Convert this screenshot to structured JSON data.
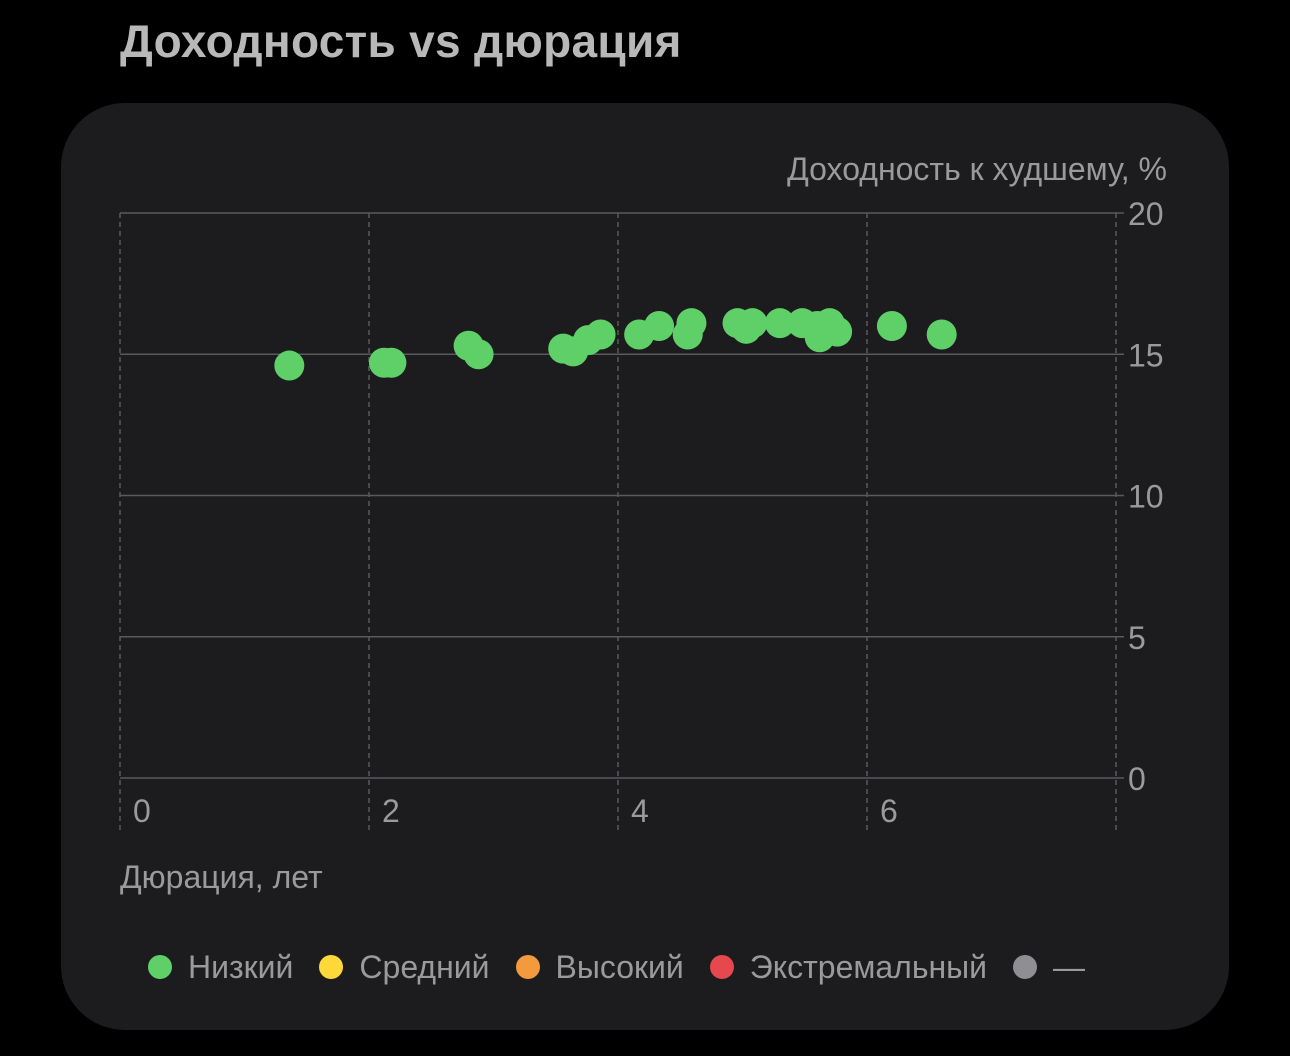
{
  "page": {
    "title": "Доходность vs дюрация"
  },
  "chart_data": {
    "type": "scatter",
    "title": "Доходность vs дюрация",
    "xlabel": "Дюрация, лет",
    "ylabel": "Доходность к худшему, %",
    "xlim": [
      0,
      8
    ],
    "ylim": [
      0,
      20
    ],
    "x_ticks": [
      0,
      2,
      4,
      6
    ],
    "y_ticks": [
      0,
      5,
      10,
      15,
      20
    ],
    "grid": true,
    "legend_position": "bottom",
    "series": [
      {
        "name": "Низкий",
        "color": "#5fd068",
        "points": [
          {
            "x": 1.36,
            "y": 14.6
          },
          {
            "x": 2.12,
            "y": 14.7
          },
          {
            "x": 2.18,
            "y": 14.7
          },
          {
            "x": 2.8,
            "y": 15.3
          },
          {
            "x": 2.88,
            "y": 15.0
          },
          {
            "x": 3.56,
            "y": 15.2
          },
          {
            "x": 3.64,
            "y": 15.1
          },
          {
            "x": 3.76,
            "y": 15.5
          },
          {
            "x": 3.86,
            "y": 15.7
          },
          {
            "x": 4.17,
            "y": 15.7
          },
          {
            "x": 4.33,
            "y": 16.0
          },
          {
            "x": 4.56,
            "y": 15.7
          },
          {
            "x": 4.59,
            "y": 16.1
          },
          {
            "x": 4.96,
            "y": 16.1
          },
          {
            "x": 5.03,
            "y": 15.9
          },
          {
            "x": 5.08,
            "y": 16.1
          },
          {
            "x": 5.3,
            "y": 16.1
          },
          {
            "x": 5.48,
            "y": 16.1
          },
          {
            "x": 5.6,
            "y": 16.0
          },
          {
            "x": 5.62,
            "y": 15.6
          },
          {
            "x": 5.7,
            "y": 16.1
          },
          {
            "x": 5.76,
            "y": 15.8
          },
          {
            "x": 6.2,
            "y": 16.0
          },
          {
            "x": 6.6,
            "y": 15.7
          }
        ]
      },
      {
        "name": "Средний",
        "color": "#ffd93a",
        "points": []
      },
      {
        "name": "Высокий",
        "color": "#f39a3e",
        "points": []
      },
      {
        "name": "Экстремальный",
        "color": "#e5484d",
        "points": []
      },
      {
        "name": "—",
        "color": "#8e8e93",
        "points": []
      }
    ]
  }
}
